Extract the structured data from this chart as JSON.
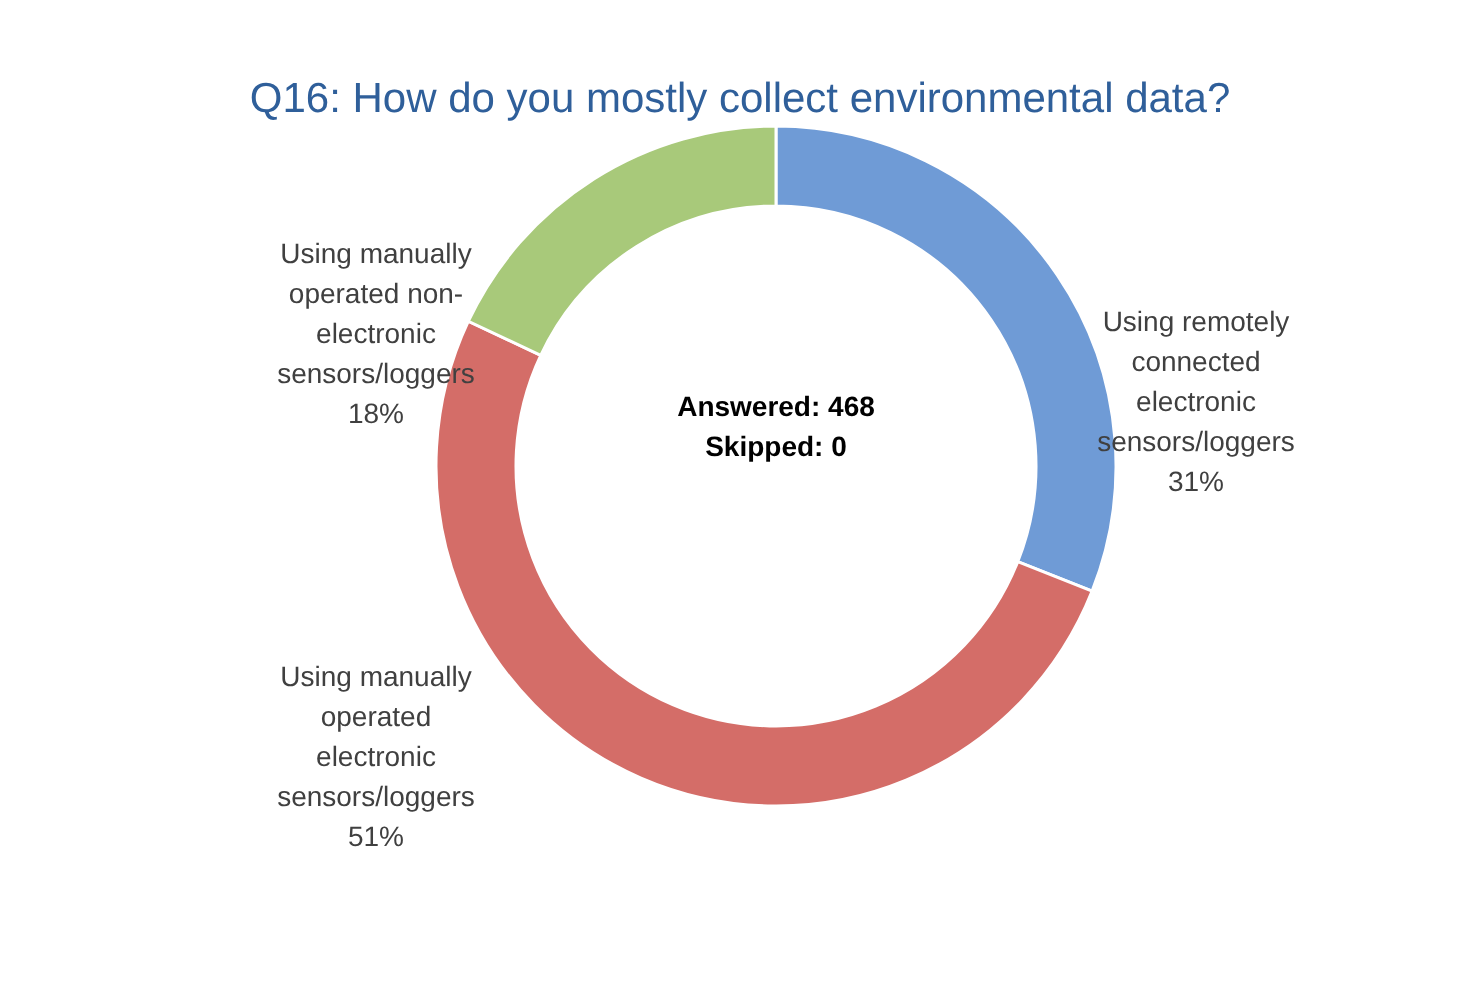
{
  "chart_data": {
    "type": "donut",
    "title": "Q16: How do you mostly collect environmental data?",
    "categories": [
      "Using remotely connected electronic sensors/loggers",
      "Using manually operated electronic sensors/loggers",
      "Using manually operated non-electronic sensors/loggers"
    ],
    "values": [
      31,
      51,
      18
    ],
    "colors": [
      "#6f9bd6",
      "#d46d68",
      "#a8c97a"
    ],
    "annotations": [
      "Answered: 468",
      "Skipped: 0"
    ],
    "value_labels": [
      "31%",
      "51%",
      "18%"
    ]
  }
}
